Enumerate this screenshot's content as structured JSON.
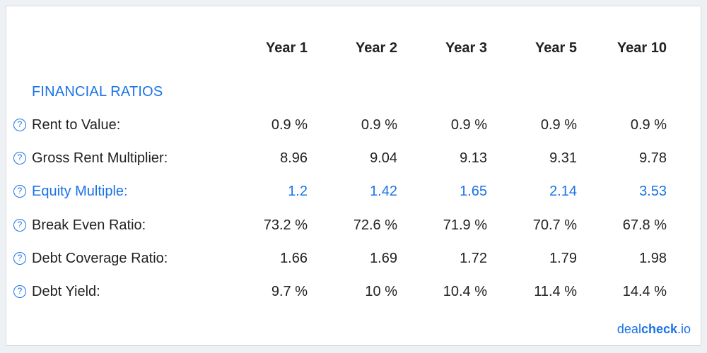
{
  "columns": [
    "Year 1",
    "Year 2",
    "Year 3",
    "Year 5",
    "Year 10"
  ],
  "section_title": "FINANCIAL RATIOS",
  "help_glyph": "?",
  "rows": [
    {
      "label": "Rent to Value:",
      "values": [
        "0.9 %",
        "0.9 %",
        "0.9 %",
        "0.9 %",
        "0.9 %"
      ]
    },
    {
      "label": "Gross Rent Multiplier:",
      "values": [
        "8.96",
        "9.04",
        "9.13",
        "9.31",
        "9.78"
      ]
    },
    {
      "label": "Equity Multiple:",
      "values": [
        "1.2",
        "1.42",
        "1.65",
        "2.14",
        "3.53"
      ]
    },
    {
      "label": "Break Even Ratio:",
      "values": [
        "73.2 %",
        "72.6 %",
        "71.9 %",
        "70.7 %",
        "67.8 %"
      ]
    },
    {
      "label": "Debt Coverage Ratio:",
      "values": [
        "1.66",
        "1.69",
        "1.72",
        "1.79",
        "1.98"
      ]
    },
    {
      "label": "Debt Yield:",
      "values": [
        "9.7 %",
        "10 %",
        "10.4 %",
        "11.4 %",
        "14.4 %"
      ]
    }
  ],
  "brand": {
    "part1": "deal",
    "part2": "check",
    "part3": ".io"
  },
  "colors": {
    "accent": "#1a73e8",
    "text": "#222222"
  }
}
